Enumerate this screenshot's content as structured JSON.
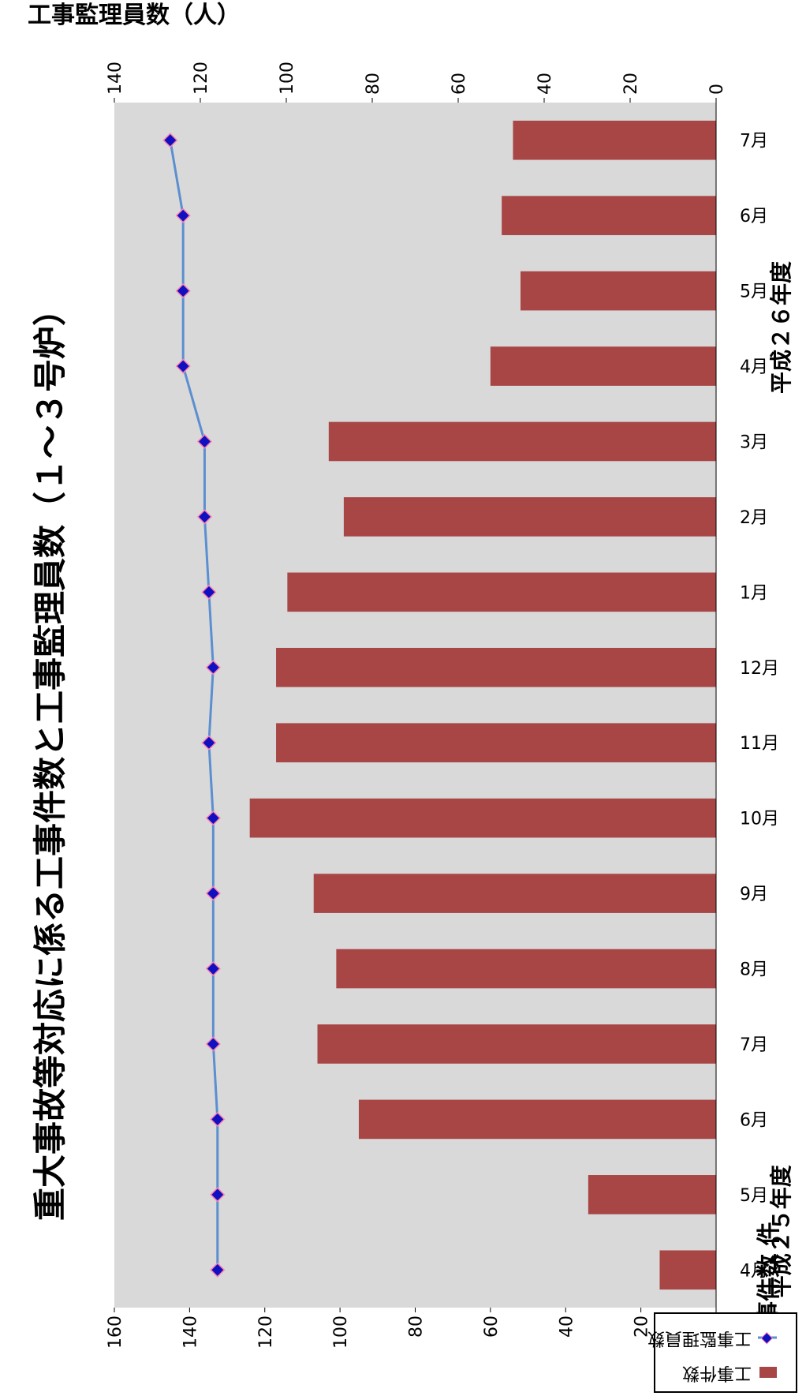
{
  "chart_data": {
    "type": "bar",
    "title": "重大事故等対応に係る工事件数と工事監理員数（１～３号炉）",
    "categories": [
      "4月",
      "5月",
      "6月",
      "7月",
      "8月",
      "9月",
      "10月",
      "11月",
      "12月",
      "1月",
      "2月",
      "3月",
      "4月",
      "5月",
      "6月",
      "7月"
    ],
    "fiscal_year_labels": [
      {
        "label": "平成２５年度",
        "under": "4月"
      },
      {
        "label": "平成２６年度",
        "under": "4月"
      }
    ],
    "series": [
      {
        "name": "工事件数",
        "type": "bar",
        "axis": "left",
        "values": [
          15,
          34,
          95,
          106,
          101,
          107,
          124,
          117,
          117,
          114,
          99,
          103,
          60,
          52,
          57,
          54
        ]
      },
      {
        "name": "工事監理員数",
        "type": "line",
        "axis": "right",
        "values": [
          116,
          116,
          116,
          117,
          117,
          117,
          117,
          118,
          117,
          118,
          119,
          119,
          124,
          124,
          124,
          127
        ]
      }
    ],
    "y_left": {
      "label": "工事件数 件",
      "ylim": [
        0,
        160
      ],
      "ticks": [
        0,
        20,
        40,
        60,
        80,
        100,
        120,
        140,
        160
      ]
    },
    "y_right": {
      "label": "工事監理員数（人）",
      "ylim": [
        0,
        140
      ],
      "ticks": [
        0,
        20,
        40,
        60,
        80,
        100,
        120,
        140
      ]
    },
    "legend_placement": "bottom-left",
    "colors": {
      "bar": "#a84545",
      "line": "#5b8fd0",
      "marker": "#1010c0",
      "marker_edge": "#ff80b0",
      "plot_bg": "#d9d9d9"
    }
  }
}
